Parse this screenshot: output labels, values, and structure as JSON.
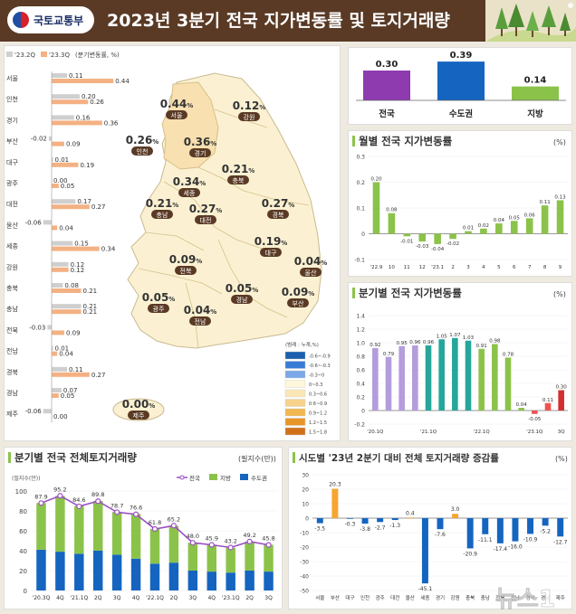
{
  "header": {
    "ministry": "국토교통부",
    "title": "2023년 3분기 전국 지가변동률 및 토지거래량"
  },
  "region_chart": {
    "legend": [
      "'23.2Q",
      "'23.3Q"
    ],
    "unit": "(분기변동률, %)",
    "rows": [
      {
        "name": "서울",
        "q2": "0.11",
        "q3": "0.44"
      },
      {
        "name": "인천",
        "q2": "0.20",
        "q3": "0.26"
      },
      {
        "name": "경기",
        "q2": "0.16",
        "q3": "0.36"
      },
      {
        "name": "부산",
        "q2": "-0.02",
        "q3": "0.09"
      },
      {
        "name": "대구",
        "q2": "0.01",
        "q3": "0.19"
      },
      {
        "name": "광주",
        "q2": "0.00",
        "q3": "0.05"
      },
      {
        "name": "대전",
        "q2": "0.17",
        "q3": "0.27"
      },
      {
        "name": "울산",
        "q2": "-0.06",
        "q3": "0.04"
      },
      {
        "name": "세종",
        "q2": "0.15",
        "q3": "0.34"
      },
      {
        "name": "강원",
        "q2": "0.12",
        "q3": "0.12"
      },
      {
        "name": "충북",
        "q2": "0.08",
        "q3": "0.21"
      },
      {
        "name": "충남",
        "q2": "0.21",
        "q3": "0.21"
      },
      {
        "name": "전북",
        "q2": "-0.03",
        "q3": "0.09"
      },
      {
        "name": "전남",
        "q2": "0.01",
        "q3": "0.04"
      },
      {
        "name": "경북",
        "q2": "0.11",
        "q3": "0.27"
      },
      {
        "name": "경남",
        "q2": "0.07",
        "q3": "0.05"
      },
      {
        "name": "제주",
        "q2": "-0.06",
        "q3": "0.00"
      }
    ]
  },
  "map": {
    "labels": [
      {
        "name": "서울",
        "value": "0.44"
      },
      {
        "name": "인천",
        "value": "0.26"
      },
      {
        "name": "경기",
        "value": "0.36"
      },
      {
        "name": "강원",
        "value": "0.12"
      },
      {
        "name": "세종",
        "value": "0.34"
      },
      {
        "name": "충북",
        "value": "0.21"
      },
      {
        "name": "충남",
        "value": "0.21"
      },
      {
        "name": "대전",
        "value": "0.27"
      },
      {
        "name": "경북",
        "value": "0.27"
      },
      {
        "name": "대구",
        "value": "0.19"
      },
      {
        "name": "전북",
        "value": "0.09"
      },
      {
        "name": "울산",
        "value": "0.04"
      },
      {
        "name": "경남",
        "value": "0.05"
      },
      {
        "name": "부산",
        "value": "0.09"
      },
      {
        "name": "광주",
        "value": "0.05"
      },
      {
        "name": "전남",
        "value": "0.04"
      },
      {
        "name": "제주",
        "value": "0.00"
      }
    ],
    "pct": "%",
    "legend_title": "(범례 : 누계,%)",
    "legend": [
      "-0.6~-0.9",
      "-0.6~-0.3",
      "-0.3~0",
      "0~0.3",
      "0.3~0.6",
      "0.6~0.9",
      "0.9~1.2",
      "1.2~1.5",
      "1.5~1.8"
    ],
    "legend_colors": [
      "#1b5fae",
      "#3a7bd5",
      "#7aa8e8",
      "#fff7dc",
      "#fbe6b6",
      "#f6d28c",
      "#f0b84f",
      "#e8962a",
      "#d0711a"
    ]
  },
  "overview": {
    "bars": [
      {
        "label": "전국",
        "value": "0.30",
        "color": "#8e3bb0"
      },
      {
        "label": "수도권",
        "value": "0.39",
        "color": "#1565c0"
      },
      {
        "label": "지방",
        "value": "0.14",
        "color": "#8bc34a"
      }
    ]
  },
  "chart_data": [
    {
      "type": "bar",
      "title": "월별 전국 지가변동률",
      "unit": "(%)",
      "categories": [
        "'22.9",
        "10",
        "11",
        "12",
        "'23.1",
        "2",
        "3",
        "4",
        "5",
        "6",
        "7",
        "8",
        "9"
      ],
      "values": [
        0.2,
        0.08,
        -0.01,
        -0.03,
        -0.04,
        -0.02,
        0.01,
        0.02,
        0.04,
        0.05,
        0.06,
        0.11,
        0.13
      ],
      "labels": [
        "0.20",
        "0.08",
        "-0.01",
        "-0.03",
        "-0.04",
        "-0.02",
        "0.01",
        "0.02",
        "0.04",
        "0.05",
        "0.06",
        "0.11",
        "0.13"
      ],
      "yticks": [
        "0.3",
        "0.2",
        "0.1",
        "0",
        "-0.1"
      ],
      "ylim": [
        -0.1,
        0.3
      ],
      "color": "#8bc34a"
    },
    {
      "type": "bar",
      "title": "분기별 전국 지가변동률",
      "unit": "(%)",
      "categories": [
        "'20.1Q",
        "",
        "",
        "",
        "'21.1Q",
        "",
        "",
        "",
        "'22.1Q",
        "",
        "",
        "",
        "'23.1Q",
        "",
        "3Q"
      ],
      "values": [
        0.92,
        0.79,
        0.95,
        0.96,
        0.96,
        1.05,
        1.07,
        1.03,
        0.91,
        0.98,
        0.78,
        0.04,
        -0.05,
        0.11,
        0.3
      ],
      "labels": [
        "0.92",
        "0.79",
        "0.95",
        "0.96",
        "0.96",
        "1.05",
        "1.07",
        "1.03",
        "0.91",
        "0.98",
        "0.78",
        "0.04",
        "-0.05",
        "0.11",
        "0.30"
      ],
      "colors": [
        "#b39ddb",
        "#b39ddb",
        "#b39ddb",
        "#b39ddb",
        "#26a69a",
        "#26a69a",
        "#26a69a",
        "#26a69a",
        "#8bc34a",
        "#8bc34a",
        "#8bc34a",
        "#8bc34a",
        "#ef5350",
        "#ef5350",
        "#d32f2f"
      ],
      "yticks": [
        "1.4",
        "1.2",
        "1.0",
        "0.8",
        "0.6",
        "0.4",
        "0.2",
        "0",
        "-0.2"
      ],
      "ylim": [
        -0.2,
        1.4
      ]
    },
    {
      "type": "bar",
      "title": "분기별 전국 전체토지거래량",
      "unit": "(필지수(만))",
      "subunit": "(필지수(만))",
      "categories": [
        "'20.3Q",
        "4Q",
        "'21.1Q",
        "2Q",
        "3Q",
        "4Q",
        "'22.1Q",
        "2Q",
        "3Q",
        "4Q",
        "'23.1Q",
        "2Q",
        "3Q"
      ],
      "series": [
        {
          "name": "전국",
          "values": [
            87.9,
            95.2,
            84.6,
            89.8,
            78.7,
            76.6,
            61.8,
            65.2,
            48.0,
            45.9,
            43.2,
            49.2,
            45.8
          ]
        },
        {
          "name": "지방",
          "values": [
            47,
            56,
            48,
            50,
            43,
            45,
            35,
            37,
            28,
            27,
            25,
            29,
            27
          ]
        },
        {
          "name": "수도권",
          "values": [
            41,
            39,
            37,
            40,
            36,
            32,
            27,
            28,
            20,
            19,
            18,
            20,
            19
          ]
        }
      ],
      "line_labels": [
        "87.9",
        "95.2",
        "84.6",
        "89.8",
        "78.7",
        "76.6",
        "61.8",
        "65.2",
        "48.0",
        "45.9",
        "43.2",
        "49.2",
        "45.8"
      ],
      "yticks": [
        "100",
        "80",
        "60",
        "40",
        "20",
        "0"
      ],
      "ylim": [
        0,
        100
      ],
      "colors": {
        "전국": "#9c4fc2",
        "지방": "#8bc34a",
        "수도권": "#1565c0"
      }
    },
    {
      "type": "bar",
      "title": "시도별 '23년 2분기 대비 전체 토지거래량 증감률",
      "unit": "(%)",
      "categories": [
        "서울",
        "부산",
        "대구",
        "인천",
        "광주",
        "대전",
        "울산",
        "세종",
        "경기",
        "강원",
        "충북",
        "충남",
        "전북",
        "전남",
        "경북",
        "경남",
        "제주"
      ],
      "values": [
        -3.5,
        20.3,
        -0.3,
        -3.8,
        -2.7,
        -1.3,
        0.4,
        -45.1,
        -7.6,
        3.0,
        -20.9,
        -11.1,
        -17.4,
        -16.0,
        -10.9,
        -5.2,
        -12.7
      ],
      "labels": [
        "-3.5",
        "20.3",
        "-0.3",
        "-3.8",
        "-2.7",
        "-1.3",
        "0.4",
        "-45.1",
        "-7.6",
        "3.0",
        "-20.9",
        "-11.1",
        "-17.4",
        "-16.0",
        "-10.9",
        "-5.2",
        "-12.7"
      ],
      "yticks": [
        "30",
        "20",
        "10",
        "0",
        "-10",
        "-20",
        "-30",
        "-40",
        "-50"
      ],
      "ylim": [
        -50,
        30
      ]
    }
  ],
  "watermark": "뉴스1"
}
